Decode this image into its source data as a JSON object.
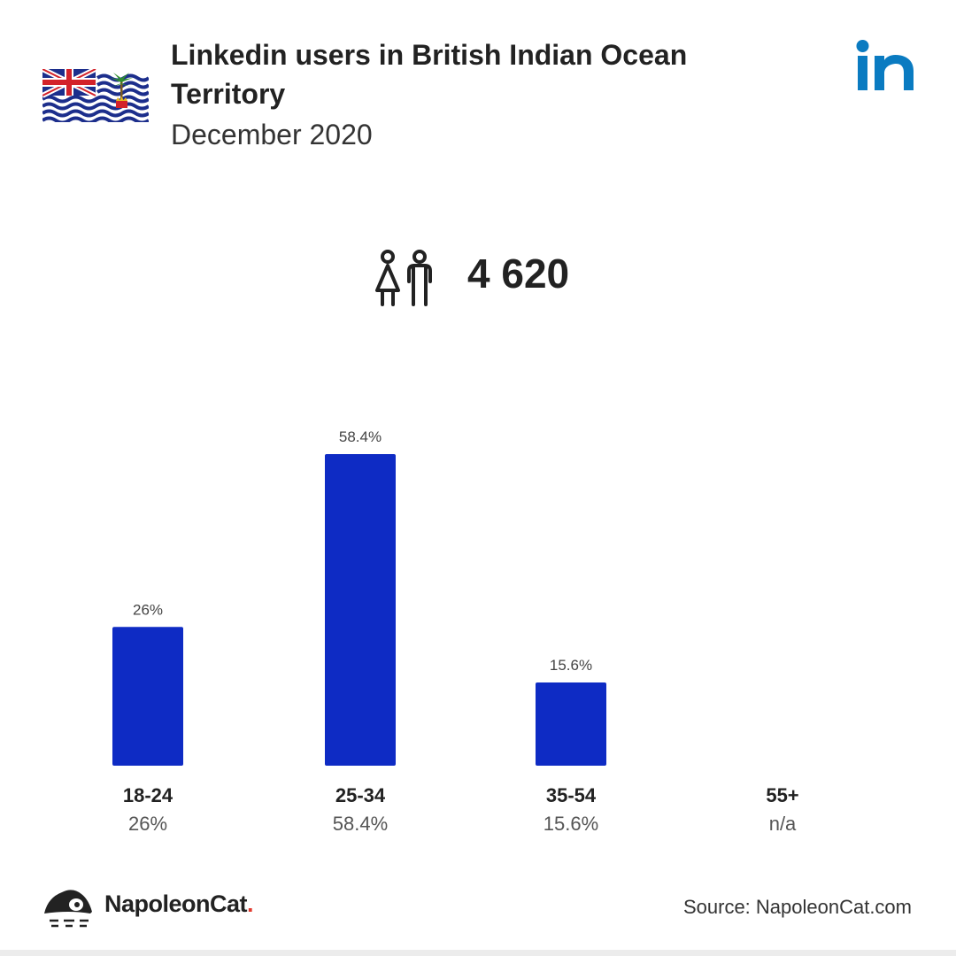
{
  "header": {
    "title": "Linkedin users in British Indian Ocean Territory",
    "subtitle": "December 2020"
  },
  "total": {
    "value": "4 620",
    "icon": "users-icon"
  },
  "footer": {
    "brand_name": "NapoleonCat",
    "brand_dot": ".",
    "source": "Source: NapoleonCat.com"
  },
  "colors": {
    "bar": "#0e2bc4",
    "linkedin": "#0a7bc1",
    "text": "#222222",
    "muted": "#555555"
  },
  "chart_data": {
    "type": "bar",
    "categories": [
      "18-24",
      "25-34",
      "35-54",
      "55+"
    ],
    "values": [
      26,
      58.4,
      15.6,
      null
    ],
    "value_labels": [
      "26%",
      "58.4%",
      "15.6%",
      "n/a"
    ],
    "bar_labels": [
      "26%",
      "58.4%",
      "15.6%",
      ""
    ],
    "ylim": [
      0,
      58.4
    ],
    "grid": false,
    "legend": false
  }
}
